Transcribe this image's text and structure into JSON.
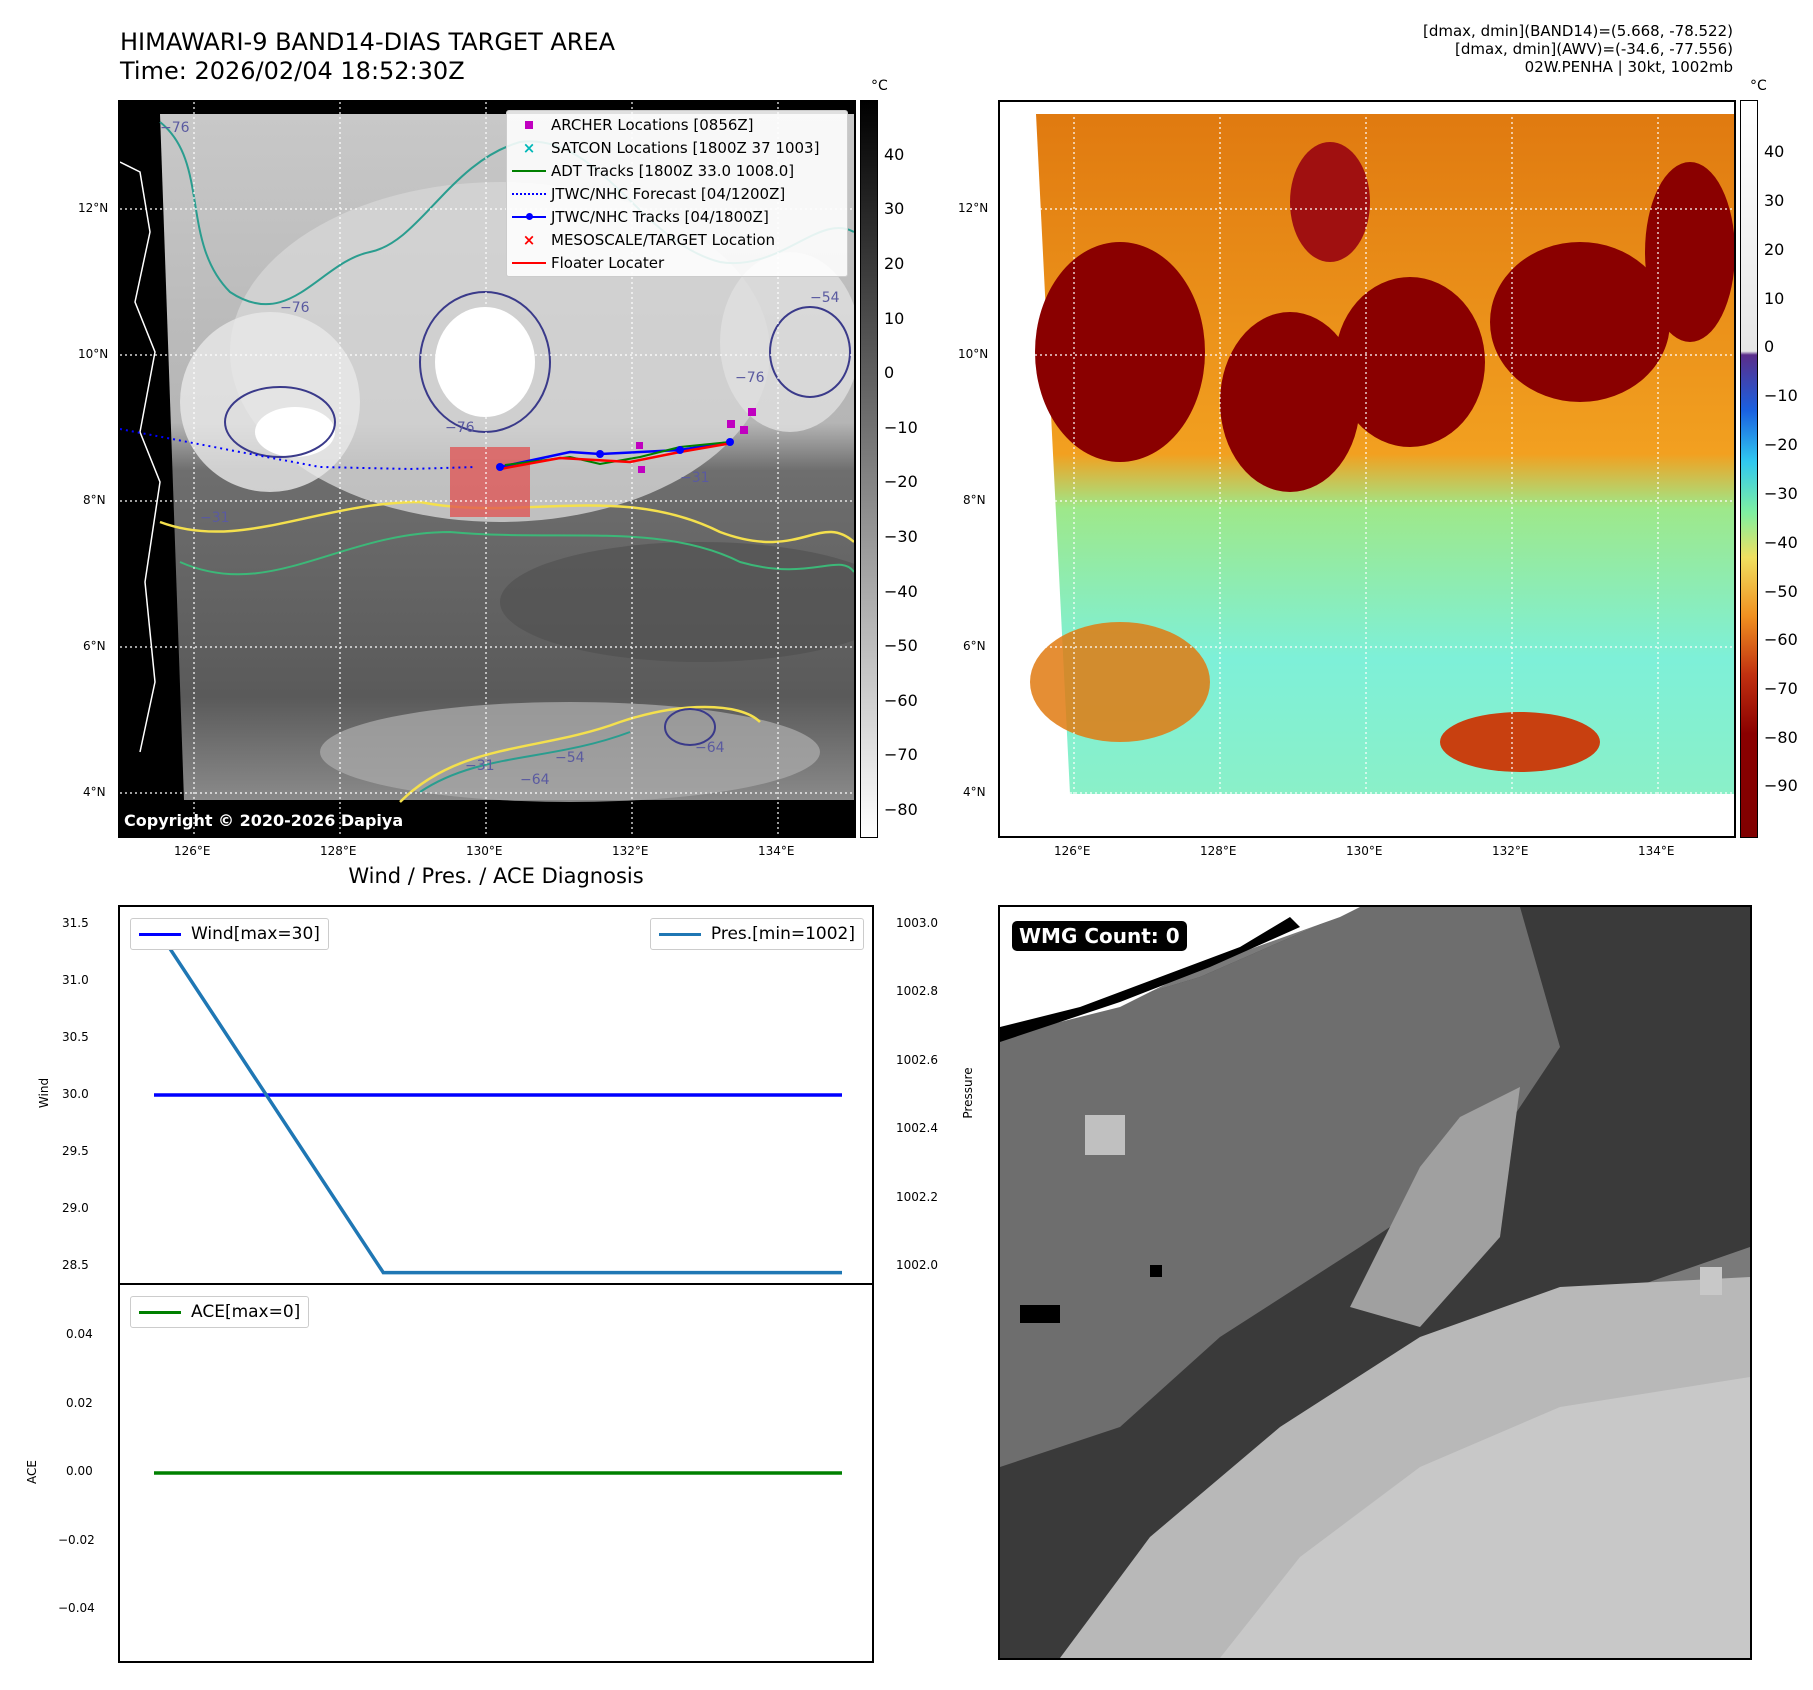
{
  "header": {
    "title_line1": "HIMAWARI-9 BAND14-DIAS TARGET AREA",
    "title_line2": "Time: 2026/02/04 18:52:30Z",
    "info_line1": "[dmax, dmin](BAND14)=(5.668, -78.522)",
    "info_line2": "[dmax, dmin](AWV)=(-34.6, -77.556)",
    "info_line3": "02W.PENHA | 30kt, 1002mb"
  },
  "map_axes": {
    "lat_labels": [
      "12°N",
      "10°N",
      "8°N",
      "6°N",
      "4°N"
    ],
    "lon_labels": [
      "126°E",
      "128°E",
      "130°E",
      "132°E",
      "134°E"
    ]
  },
  "ir_panel": {
    "copyright": "Copyright © 2020-2026 Dapiya",
    "colorbar_unit": "°C",
    "colorbar_ticks": [
      "40",
      "30",
      "20",
      "10",
      "0",
      "−10",
      "−20",
      "−30",
      "−40",
      "−50",
      "−60",
      "−70",
      "−80"
    ],
    "contour_labels": [
      "−76",
      "−76",
      "−76",
      "−76",
      "−54",
      "−31",
      "−31",
      "−64",
      "−54",
      "−31",
      "−64"
    ],
    "legend": [
      {
        "label": "ARCHER Locations [0856Z]",
        "color": "#c000c0",
        "symbol": "square"
      },
      {
        "label": "SATCON Locations [1800Z 37 1003]",
        "color": "#00b8b8",
        "symbol": "x"
      },
      {
        "label": "ADT Tracks [1800Z 33.0 1008.0]",
        "color": "#008000",
        "symbol": "line"
      },
      {
        "label": "JTWC/NHC Forecast [04/1200Z]",
        "color": "#0000ff",
        "symbol": "dotted"
      },
      {
        "label": "JTWC/NHC Tracks [04/1800Z]",
        "color": "#0000ff",
        "symbol": "line-dot"
      },
      {
        "label": "MESOSCALE/TARGET Location",
        "color": "#ff0000",
        "symbol": "x"
      },
      {
        "label": "Floater Locater",
        "color": "#ff0000",
        "symbol": "line"
      }
    ]
  },
  "enhanced_panel": {
    "colorbar_unit": "°C",
    "colorbar_ticks": [
      "40",
      "30",
      "20",
      "10",
      "0",
      "−10",
      "−20",
      "−30",
      "−40",
      "−50",
      "−60",
      "−70",
      "−80",
      "−90"
    ]
  },
  "diagnosis": {
    "title": "Wind / Pres. / ACE Diagnosis",
    "wind_ylabel": "Wind",
    "pressure_ylabel": "Pressure",
    "ace_ylabel": "ACE",
    "wind_ticks": [
      "31.5",
      "31.0",
      "30.5",
      "30.0",
      "29.5",
      "29.0",
      "28.5"
    ],
    "pressure_ticks": [
      "1003.0",
      "1002.8",
      "1002.6",
      "1002.4",
      "1002.2",
      "1002.0"
    ],
    "ace_ticks": [
      "0.04",
      "0.02",
      "0.00",
      "−0.02",
      "−0.04"
    ],
    "wind_legend": "Wind[max=30]",
    "pres_legend": "Pres.[min=1002]",
    "ace_legend": "ACE[max=0]"
  },
  "wmg_panel": {
    "label": "WMG Count: 0"
  },
  "chart_data": [
    {
      "type": "line",
      "title": "Wind / Pres. / ACE Diagnosis",
      "ylabel": "Wind",
      "x": [
        0,
        1,
        2,
        3
      ],
      "series": [
        {
          "name": "Wind[max=30]",
          "axis": "left",
          "color": "#0000ff",
          "values": [
            30,
            30,
            30,
            30
          ]
        },
        {
          "name": "Pres.[min=1002]",
          "axis": "right",
          "color": "#1f77b4",
          "values": [
            1003,
            1002,
            1002,
            1002
          ]
        }
      ],
      "ylim_left": [
        28.42,
        31.58
      ],
      "ylim_right": [
        1001.97,
        1003.05
      ]
    },
    {
      "type": "line",
      "ylabel": "ACE",
      "x": [
        0,
        1,
        2,
        3
      ],
      "series": [
        {
          "name": "ACE[max=0]",
          "color": "#008000",
          "values": [
            0,
            0,
            0,
            0
          ]
        }
      ],
      "ylim": [
        -0.055,
        0.055
      ]
    }
  ]
}
